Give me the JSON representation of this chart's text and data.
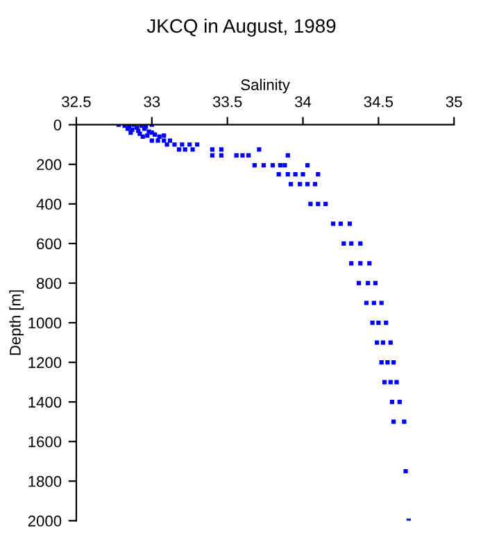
{
  "chart_data": {
    "type": "scatter",
    "title": "JKCQ in August, 1989",
    "xlabel": "Salinity",
    "ylabel": "Depth [m]",
    "xlim": [
      32.5,
      35
    ],
    "xticks": [
      32.5,
      33,
      33.5,
      34,
      34.5,
      35
    ],
    "ylim": [
      2000,
      0
    ],
    "yticks": [
      0,
      200,
      400,
      600,
      800,
      1000,
      1200,
      1400,
      1600,
      1800,
      2000
    ],
    "grid": false,
    "marker": "square",
    "legend": false,
    "series": [
      {
        "color": "#0000ff",
        "x": [
          32.78,
          32.82,
          32.85,
          32.88,
          32.9,
          32.93,
          32.96,
          33.0,
          32.84,
          32.87,
          32.91,
          32.95,
          32.98,
          32.86,
          32.92,
          33.0,
          33.02,
          32.97,
          33.05,
          33.08,
          32.94,
          33.0,
          33.04,
          33.08,
          33.12,
          33.1,
          33.15,
          33.2,
          33.25,
          33.3,
          33.18,
          33.22,
          33.27,
          33.4,
          33.46,
          33.71,
          33.4,
          33.46,
          33.56,
          33.6,
          33.64,
          33.9,
          33.68,
          33.74,
          33.8,
          33.85,
          33.88,
          34.03,
          33.84,
          33.9,
          33.95,
          34.0,
          34.1,
          33.92,
          33.98,
          34.03,
          34.08,
          34.05,
          34.1,
          34.15,
          34.2,
          34.25,
          34.31,
          34.27,
          34.32,
          34.38,
          34.32,
          34.38,
          34.44,
          34.37,
          34.43,
          34.48,
          34.42,
          34.47,
          34.52,
          34.46,
          34.5,
          34.55,
          34.49,
          34.53,
          34.58,
          34.52,
          34.56,
          34.6,
          34.54,
          34.58,
          34.62,
          34.59,
          34.64,
          34.6,
          34.67,
          34.68,
          34.7
        ],
        "values": [
          0,
          5,
          10,
          0,
          15,
          5,
          10,
          0,
          20,
          25,
          30,
          20,
          35,
          40,
          45,
          40,
          50,
          55,
          60,
          55,
          60,
          80,
          80,
          80,
          80,
          100,
          100,
          100,
          100,
          100,
          125,
          125,
          125,
          125,
          125,
          125,
          155,
          155,
          155,
          155,
          155,
          155,
          205,
          205,
          205,
          205,
          205,
          205,
          250,
          250,
          250,
          250,
          250,
          300,
          300,
          300,
          300,
          400,
          400,
          400,
          500,
          500,
          500,
          600,
          600,
          600,
          700,
          700,
          700,
          800,
          800,
          800,
          900,
          900,
          900,
          1000,
          1000,
          1000,
          1100,
          1100,
          1100,
          1200,
          1200,
          1200,
          1300,
          1300,
          1300,
          1400,
          1400,
          1500,
          1500,
          1750,
          2000
        ]
      }
    ]
  }
}
